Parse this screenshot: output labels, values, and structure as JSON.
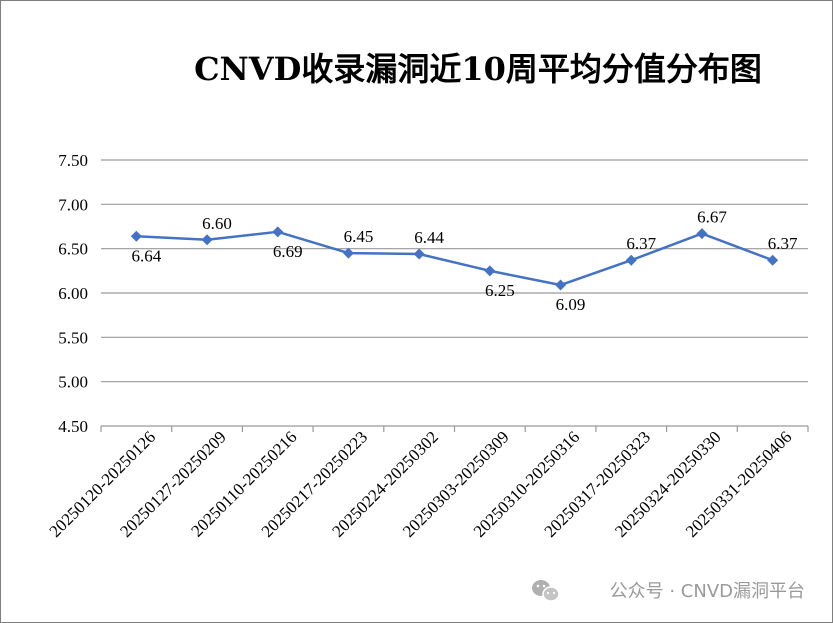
{
  "chart_data": {
    "type": "line",
    "title": "CNVD收录漏洞近10周平均分值分布图",
    "categories": [
      "20250120-20250126",
      "20250127-20250209",
      "20250110-20250216",
      "20250217-20250223",
      "20250224-20250302",
      "20250303-20250309",
      "20250310-20250316",
      "20250317-20250323",
      "20250324-20250330",
      "20250331-20250406"
    ],
    "series": [
      {
        "values": [
          6.64,
          6.6,
          6.69,
          6.45,
          6.44,
          6.25,
          6.09,
          6.37,
          6.67,
          6.37
        ],
        "data_labels": [
          "6.64",
          "6.60",
          "6.69",
          "6.45",
          "6.44",
          "6.25",
          "6.09",
          "6.37",
          "6.67",
          "6.37"
        ],
        "label_positions": [
          "below",
          "above",
          "below",
          "above",
          "above",
          "below",
          "below",
          "above",
          "above",
          "above"
        ],
        "color": "#4472c4"
      }
    ],
    "yticks": [
      "4.50",
      "5.00",
      "5.50",
      "6.00",
      "6.50",
      "7.00",
      "7.50"
    ],
    "ylim": [
      4.5,
      7.5
    ],
    "xlabel": "",
    "ylabel": "",
    "grid": true,
    "legend": "none"
  },
  "watermark": {
    "text": "公众号 · CNVD漏洞平台",
    "icon": "wechat-icon"
  }
}
